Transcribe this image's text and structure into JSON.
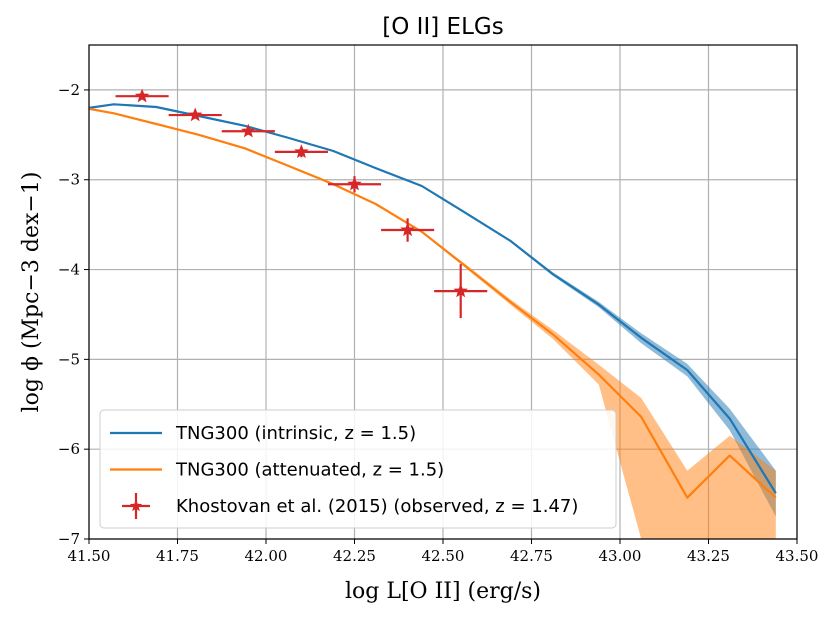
{
  "chart_data": {
    "type": "line",
    "title": "[O II] ELGs",
    "xlabel": "log L[O II] (erg/s)",
    "ylabel": "log ϕ (Mpc−3 dex−1)",
    "xlim": [
      41.5,
      43.5
    ],
    "ylim": [
      -7,
      -1.5
    ],
    "x_ticks": [
      "41.50",
      "41.75",
      "42.00",
      "42.25",
      "42.50",
      "42.75",
      "43.00",
      "43.25",
      "43.50"
    ],
    "y_ticks": [
      "−2",
      "−3",
      "−4",
      "−5",
      "−6",
      "−7"
    ],
    "grid": true,
    "legend_position": "lower-left",
    "series": [
      {
        "name": "TNG300 (intrinsic, z = 1.5)",
        "color": "#1f77b4",
        "x": [
          41.5,
          41.57,
          41.69,
          41.81,
          41.94,
          42.06,
          42.19,
          42.31,
          42.44,
          42.56,
          42.69,
          42.81,
          42.94,
          43.06,
          43.19,
          43.31,
          43.44
        ],
        "y": [
          -2.2,
          -2.16,
          -2.19,
          -2.29,
          -2.4,
          -2.53,
          -2.68,
          -2.87,
          -3.07,
          -3.36,
          -3.68,
          -4.05,
          -4.39,
          -4.76,
          -5.12,
          -5.66,
          -6.49
        ],
        "y_low": [
          -2.2,
          -2.16,
          -2.19,
          -2.29,
          -2.4,
          -2.53,
          -2.68,
          -2.87,
          -3.07,
          -3.37,
          -3.69,
          -4.07,
          -4.42,
          -4.82,
          -5.19,
          -5.79,
          -6.75
        ],
        "y_high": [
          -2.2,
          -2.16,
          -2.19,
          -2.29,
          -2.4,
          -2.53,
          -2.68,
          -2.87,
          -3.07,
          -3.35,
          -3.67,
          -4.03,
          -4.36,
          -4.71,
          -5.05,
          -5.55,
          -6.24
        ]
      },
      {
        "name": "TNG300 (attenuated, z = 1.5)",
        "color": "#ff7f0e",
        "x": [
          41.5,
          41.57,
          41.69,
          41.81,
          41.94,
          42.06,
          42.19,
          42.31,
          42.44,
          42.56,
          42.69,
          42.81,
          42.94,
          43.06,
          43.19,
          43.31,
          43.44
        ],
        "y": [
          -2.21,
          -2.26,
          -2.38,
          -2.5,
          -2.65,
          -2.84,
          -3.05,
          -3.27,
          -3.58,
          -3.95,
          -4.36,
          -4.72,
          -5.17,
          -5.64,
          -6.54,
          -6.07,
          -6.54
        ],
        "y_low": [
          -2.21,
          -2.26,
          -2.38,
          -2.5,
          -2.65,
          -2.84,
          -3.05,
          -3.27,
          -3.59,
          -3.97,
          -4.39,
          -4.77,
          -5.28,
          -7.0,
          -7.0,
          -7.0,
          -7.0
        ],
        "y_high": [
          -2.21,
          -2.26,
          -2.38,
          -2.5,
          -2.65,
          -2.84,
          -3.05,
          -3.27,
          -3.57,
          -3.93,
          -4.33,
          -4.67,
          -5.06,
          -5.43,
          -6.24,
          -5.85,
          -6.24
        ]
      },
      {
        "name": "Khostovan et al. (2015) (observed, z = 1.47)",
        "color": "#d62728",
        "marker": "star",
        "x": [
          41.65,
          41.8,
          41.95,
          42.1,
          42.25,
          42.4,
          42.55
        ],
        "y": [
          -2.07,
          -2.28,
          -2.46,
          -2.69,
          -3.05,
          -3.56,
          -4.24
        ],
        "xerr": [
          0.075,
          0.075,
          0.075,
          0.075,
          0.075,
          0.075,
          0.075
        ],
        "yerr": [
          0.03,
          0.04,
          0.04,
          0.06,
          0.09,
          0.13,
          0.3
        ]
      }
    ]
  }
}
